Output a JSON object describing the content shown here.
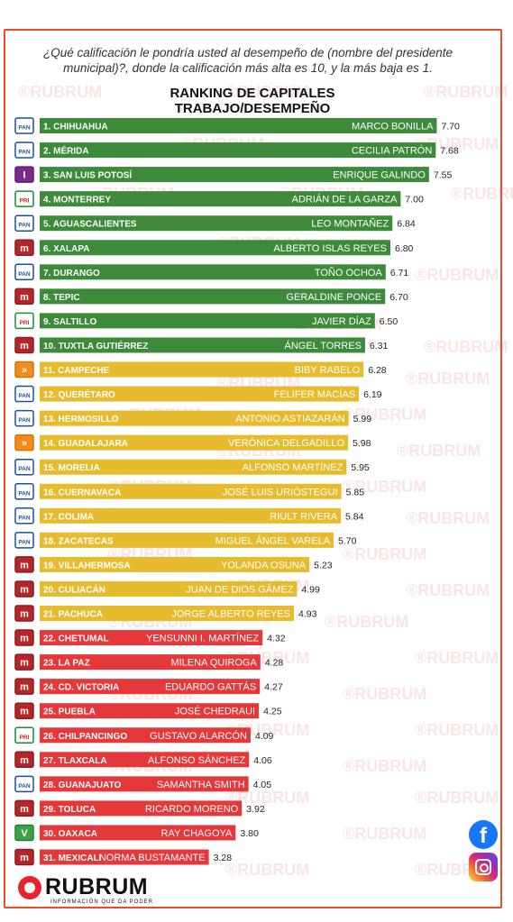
{
  "question": "¿Qué calificación le pondría usted al desempeño de (nombre del presidente municipal)?, donde la calificación más alta es 10, y la más baja es 1.",
  "brand": {
    "name": "RUBRUM",
    "tagline": "INFORMACIÓN QUE DA PODER",
    "watermark": "RUBRUM"
  },
  "social": {
    "facebook": "facebook-icon",
    "instagram": "instagram-icon"
  },
  "colors": {
    "green": "#3c8a3a",
    "yellow": "#e6bc2e",
    "red": "#e5383b",
    "frame": "#e84d2a"
  },
  "chart_data": {
    "type": "bar",
    "orientation": "horizontal",
    "title": "RANKING DE CAPITALES\nTRABAJO/DESEMPEÑO",
    "categories": [
      "1. CHIHUAHUA",
      "2. MÉRIDA",
      "3. SAN LUIS POTOSÍ",
      "4. MONTERREY",
      "5. AGUASCALIENTES",
      "6. XALAPA",
      "7. DURANGO",
      "8. TEPIC",
      "9. SALTILLO",
      "10. TUXTLA GUTIÉRREZ",
      "11. CAMPECHE",
      "12. QUERÉTARO",
      "13. HERMOSILLO",
      "14. GUADALAJARA",
      "15. MORELIA",
      "16. CUERNAVACA",
      "17. COLIMA",
      "18. ZACATECAS",
      "19. VILLAHERMOSA",
      "20. CULIACÁN",
      "21. PACHUCA",
      "22. CHETUMAL",
      "23. LA PAZ",
      "24. CD. VICTORIA",
      "25. PUEBLA",
      "26. CHILPANCINGO",
      "27. TLAXCALA",
      "28. GUANAJUATO",
      "29. TOLUCA",
      "30. OAXACA",
      "31. MEXICALI"
    ],
    "names": [
      "MARCO BONILLA",
      "CECILIA PATRÓN",
      "ENRIQUE GALINDO",
      "ADRIÁN DE LA GARZA",
      "LEO MONTAÑEZ",
      "ALBERTO ISLAS REYES",
      "TOÑO OCHOA",
      "GERALDINE PONCE",
      "JAVIER DÍAZ",
      "ÁNGEL TORRES",
      "BIBY RABELO",
      "FELIFER MACÍAS",
      "ANTONIO ASTIAZARÁN",
      "VERÓNICA DELGADILLO",
      "ALFONSO MARTÍNEZ",
      "JOSÉ LUIS URIÓSTEGUI",
      "RIULT RIVERA",
      "MIGUEL ÁNGEL VARELA",
      "YOLANDA OSUNA",
      "JUAN DE DIOS GÁMEZ",
      "JORGE ALBERTO REYES",
      "YENSUNNI I. MARTÍNEZ",
      "MILENA QUIROGA",
      "EDUARDO GATTÁS",
      "JOSÉ CHEDRAUI",
      "GUSTAVO ALARCÓN",
      "ALFONSO SÁNCHEZ",
      "SAMANTHA SMITH",
      "RICARDO MORENO",
      "RAY CHAGOYA",
      "NORMA BUSTAMANTE"
    ],
    "values": [
      7.7,
      7.68,
      7.55,
      7.0,
      6.84,
      6.8,
      6.71,
      6.7,
      6.5,
      6.31,
      6.28,
      6.19,
      5.99,
      5.98,
      5.95,
      5.85,
      5.84,
      5.7,
      5.23,
      4.99,
      4.93,
      4.32,
      4.28,
      4.27,
      4.25,
      4.09,
      4.06,
      4.05,
      3.92,
      3.8,
      3.28
    ],
    "value_labels": [
      "7.70",
      "7.68",
      "7.55",
      "7.00",
      "6.84",
      "6.80",
      "6.71",
      "6.70",
      "6.50",
      "6.31",
      "6.28",
      "6.19",
      "5.99",
      "5.98",
      "5.95",
      "5.85",
      "5.84",
      "5.70",
      "5.23",
      "4.99",
      "4.93",
      "4.32",
      "4.28",
      "4.27",
      "4.25",
      "4.09",
      "4.06",
      "4.05",
      "3.92",
      "3.80",
      "3.28"
    ],
    "parties": [
      "PAN",
      "PAN",
      "PVEM",
      "PRI",
      "PAN",
      "MORENA",
      "PAN",
      "MORENA",
      "PRI",
      "MORENA",
      "MC",
      "PAN",
      "PAN",
      "MC",
      "PAN",
      "PAN",
      "PAN",
      "PAN",
      "MORENA",
      "MORENA",
      "MORENA",
      "MORENA",
      "MORENA",
      "MORENA",
      "MORENA",
      "PRI",
      "MORENA",
      "PAN",
      "MORENA",
      "PVEM",
      "MORENA"
    ],
    "bar_colors": [
      "green",
      "green",
      "green",
      "green",
      "green",
      "green",
      "green",
      "green",
      "green",
      "green",
      "yellow",
      "yellow",
      "yellow",
      "yellow",
      "yellow",
      "yellow",
      "yellow",
      "yellow",
      "yellow",
      "yellow",
      "yellow",
      "red",
      "red",
      "red",
      "red",
      "red",
      "red",
      "red",
      "red",
      "red",
      "red"
    ],
    "grid": false,
    "legend": "none"
  }
}
